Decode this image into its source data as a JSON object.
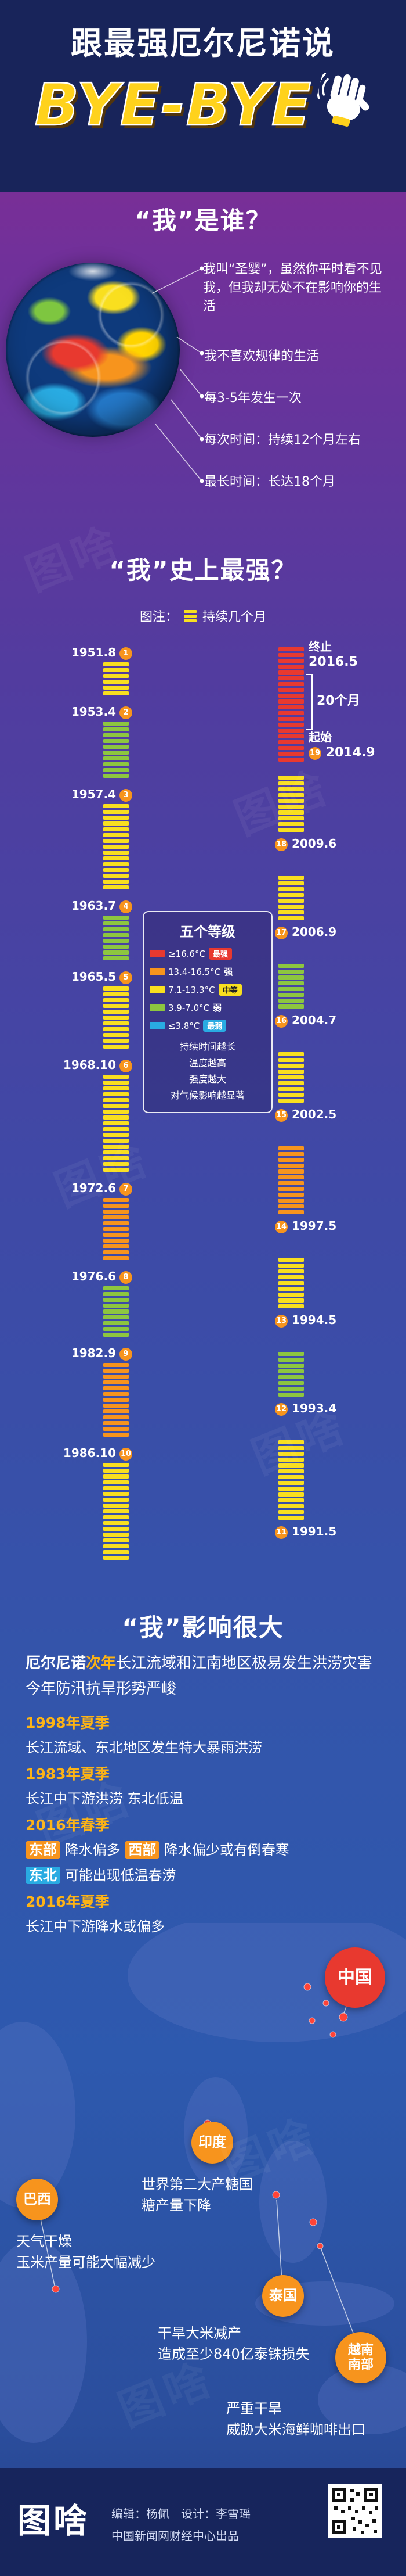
{
  "header": {
    "title": "跟最强厄尔尼诺说",
    "bye": "BYE-BYE",
    "hand_icon": "waving-hand-icon"
  },
  "who": {
    "heading": "“我”是谁？",
    "facts": [
      "我叫“圣婴”，虽然你平时看不见我，但我却无处不在影响你的生活",
      "我不喜欢规律的生活",
      "每3-5年发生一次",
      "每次时间：持续12个月左右",
      "最长时间：长达18个月"
    ]
  },
  "strongest": {
    "heading": "“我”史上最强？",
    "note_prefix": "图注：",
    "note_label": "持续几个月",
    "levels": {
      "title": "五个等级",
      "rows": [
        {
          "range": "≥16.6°C",
          "name": "最强",
          "badge": true,
          "color": "#e8392f"
        },
        {
          "range": "13.4-16.5°C",
          "name": "强",
          "badge": false,
          "color": "#f7941d"
        },
        {
          "range": "7.1-13.3°C",
          "name": "中等",
          "badge": true,
          "color": "#f9df1f"
        },
        {
          "range": "3.9-7.0°C",
          "name": "弱",
          "badge": false,
          "color": "#8dc63f"
        },
        {
          "range": "≤3.8°C",
          "name": "最弱",
          "badge": true,
          "color": "#29abe2"
        }
      ],
      "notes": [
        "持续时间越长",
        "温度越高",
        "强度越大",
        "对气候影响越显著"
      ]
    }
  },
  "chart_data": {
    "type": "bar",
    "title": "“我”史上最强？",
    "note": "图注：每格代表持续一个月",
    "unit": "月",
    "level_colors": {
      "最强": "#e8392f",
      "强": "#f7941d",
      "中等": "#f9df1f",
      "弱": "#8dc63f",
      "最弱": "#29abe2"
    },
    "events": [
      {
        "no": 1,
        "start": "1951.8",
        "months": 6,
        "level": "中等",
        "column": "left"
      },
      {
        "no": 2,
        "start": "1953.4",
        "months": 10,
        "level": "弱",
        "column": "left"
      },
      {
        "no": 3,
        "start": "1957.4",
        "months": 15,
        "level": "中等",
        "column": "left"
      },
      {
        "no": 4,
        "start": "1963.7",
        "months": 8,
        "level": "弱",
        "column": "left"
      },
      {
        "no": 5,
        "start": "1965.5",
        "months": 11,
        "level": "中等",
        "column": "left"
      },
      {
        "no": 6,
        "start": "1968.10",
        "months": 17,
        "level": "中等",
        "column": "left"
      },
      {
        "no": 7,
        "start": "1972.6",
        "months": 11,
        "level": "强",
        "column": "left"
      },
      {
        "no": 8,
        "start": "1976.6",
        "months": 9,
        "level": "弱",
        "column": "left"
      },
      {
        "no": 9,
        "start": "1982.9",
        "months": 13,
        "level": "强",
        "column": "left"
      },
      {
        "no": 10,
        "start": "1986.10",
        "months": 17,
        "level": "中等",
        "column": "left"
      },
      {
        "no": 11,
        "start": "1991.5",
        "months": 14,
        "level": "中等",
        "column": "right"
      },
      {
        "no": 12,
        "start": "1993.4",
        "months": 8,
        "level": "弱",
        "column": "right"
      },
      {
        "no": 13,
        "start": "1994.5",
        "months": 9,
        "level": "中等",
        "column": "right"
      },
      {
        "no": 14,
        "start": "1997.5",
        "months": 12,
        "level": "强",
        "column": "right"
      },
      {
        "no": 15,
        "start": "2002.5",
        "months": 9,
        "level": "中等",
        "column": "right"
      },
      {
        "no": 16,
        "start": "2004.7",
        "months": 8,
        "level": "弱",
        "column": "right"
      },
      {
        "no": 17,
        "start": "2006.9",
        "months": 8,
        "level": "中等",
        "column": "right"
      },
      {
        "no": 18,
        "start": "2009.6",
        "months": 10,
        "level": "中等",
        "column": "right"
      },
      {
        "no": 19,
        "start": "2014.9",
        "end": "2016.5",
        "months": 20,
        "level": "最强",
        "column": "right",
        "start_label": "起始",
        "end_label": "终止",
        "duration_label": "20个月"
      }
    ]
  },
  "impact": {
    "heading": "“我”影响很大",
    "intro": {
      "pre": "厄尔尼诺",
      "hl": "次年",
      "rest": "长江流域和江南地区极易发生洪涝灾害",
      "line2": "今年防汛抗旱形势严峻"
    },
    "items": [
      {
        "period": "1998年夏季",
        "text": "长江流域、东北地区发生特大暴雨洪涝"
      },
      {
        "period": "1983年夏季",
        "text": "长江中下游洪涝 东北低温"
      },
      {
        "period": "2016年春季",
        "hl1": "东部",
        "t1": "降水偏多 ",
        "hl2": "西部",
        "t2": "降水偏少或有倒春寒",
        "hl3": "东北",
        "t3": "可能出现低温春涝"
      },
      {
        "period": "2016年夏季",
        "text": "长江中下游降水或偏多"
      }
    ]
  },
  "map": {
    "countries": [
      {
        "name": "中国",
        "color": "#e8392f"
      },
      {
        "name": "印度",
        "color": "#f7941d",
        "desc": [
          "世界第二大产糖国",
          "糖产量下降"
        ]
      },
      {
        "name": "巴西",
        "color": "#f7941d",
        "desc": [
          "天气干燥",
          "玉米产量可能大幅减少"
        ]
      },
      {
        "name": "泰国",
        "color": "#f7941d",
        "desc": [
          "干旱大米减产",
          "造成至少840亿泰铢损失"
        ]
      },
      {
        "name": "越南南部",
        "color": "#f7941d",
        "desc": [
          "严重干旱",
          "威胁大米海鲜咖啡出口"
        ]
      }
    ]
  },
  "footer": {
    "brand": "图啥",
    "credits": "编辑：杨佩　设计：李雪瑶",
    "publisher": "中国新闻网财经中心出品"
  },
  "watermark": "图啥",
  "colors": {
    "header_bg": "#18245a",
    "accent_yellow": "#ffd21c",
    "accent_orange": "#f7941d",
    "highlight_blue": "#29abe2",
    "strongest_red": "#e8392f"
  }
}
